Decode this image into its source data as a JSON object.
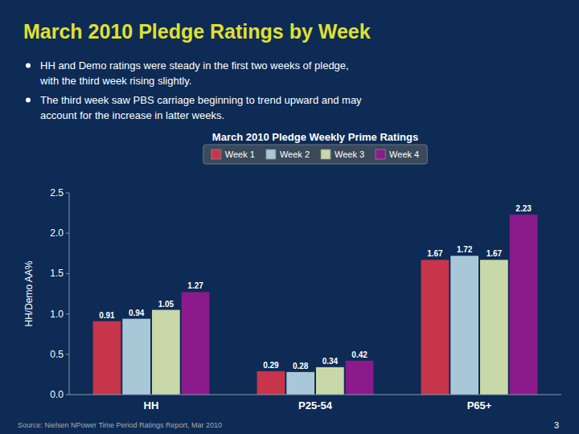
{
  "chart_data": {
    "type": "bar",
    "title": "March 2010 Pledge Ratings by Week",
    "subtitle": "March 2010 Pledge Weekly Prime Ratings",
    "annotations": [
      "HH and Demo ratings were steady in the first two weeks of pledge,",
      "with the third week rising slightly.",
      "The third week saw PBS carriage beginning to trend upward and may",
      "account for the increase in latter weeks.",
      "Source: Nielsen NPower Time Period Ratings Report, Mar 2010",
      "3"
    ],
    "y_label": "HH/Demo AA%",
    "categories": [
      "HH",
      "P25-54",
      "P65+"
    ],
    "series": [
      {
        "name": "Week 1",
        "color": "#c8354a",
        "values": [
          0.91,
          0.29,
          1.67
        ]
      },
      {
        "name": "Week 2",
        "color": "#a8c8d8",
        "values": [
          0.94,
          0.28,
          1.72
        ]
      },
      {
        "name": "Week 3",
        "color": "#c8d8a8",
        "values": [
          1.05,
          0.34,
          1.67
        ]
      },
      {
        "name": "Week 4",
        "color": "#8b1a8b",
        "values": [
          1.27,
          0.42,
          2.23
        ]
      }
    ],
    "ylim": [
      0.0,
      2.5
    ],
    "yticks": [
      {
        "value": 0,
        "label": "0.0"
      },
      0.5,
      {
        "value": 1,
        "label": "1.0"
      },
      1.5,
      {
        "value": 2,
        "label": "2.0"
      },
      2.5
    ],
    "grid": false,
    "legend": "top",
    "data_labels": true
  }
}
